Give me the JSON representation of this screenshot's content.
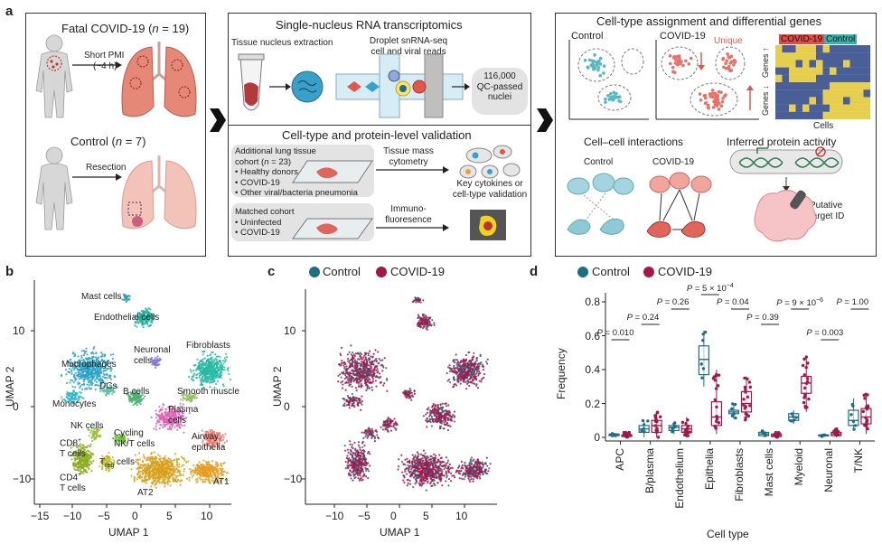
{
  "panels": {
    "a": "a",
    "b": "b",
    "c": "c",
    "d": "d"
  },
  "a": {
    "fatal_prefix": "Fatal COVID-19 (",
    "fatal_n": "n",
    "fatal_suffix": " = 19)",
    "short_pmi": "Short PMI",
    "pmi_value": "(~4 h)",
    "control_prefix": "Control (",
    "control_n": "n",
    "control_suffix": " = 7)",
    "resection": "Resection",
    "snrna_title": "Single-nucleus RNA transcriptomics",
    "extraction": "Tissue nucleus extraction",
    "droplet_1": "Droplet snRNA-seq",
    "droplet_2": "cell and viral reads",
    "qc_1": "116,000",
    "qc_2": "QC-passed",
    "qc_3": "nuclei",
    "validation_title": "Cell-type and protein-level validation",
    "additional_1": "Additional lung tissue",
    "additional_2_pre": "cohort (",
    "additional_2_n": "n",
    "additional_2_post": " = 23)",
    "bullet_healthy": "• Healthy donors",
    "bullet_covid": "• COVID-19",
    "bullet_other": "• Other viral/bacteria pneumonia",
    "matched": "Matched cohort",
    "bullet_uninfected": "• Uninfected",
    "bullet_covid2": "• COVID-19",
    "mass_1": "Tissue mass",
    "mass_2": "cytometry",
    "immuno_1": "Immuno-",
    "immuno_2": "fluoresence",
    "key_1": "Key cytokines or",
    "key_2": "cell-type validation",
    "assign_title": "Cell-type assignment and differential genes",
    "control": "Control",
    "covid": "COVID-19",
    "unique": "Unique",
    "hm_covid": "COVID-19",
    "hm_control": "Control",
    "genes_up": "Genes ↑",
    "genes_down": "Genes ↓",
    "cells": "Cells",
    "interactions": "Cell–cell interactions",
    "int_control": "Control",
    "int_covid": "COVID-19",
    "inferred": "Inferred protein activity",
    "putative_1": "Putative",
    "putative_2": "target ID"
  },
  "b": {
    "xlabel": "UMAP 1",
    "ylabel": "UMAP 2",
    "xticks": [
      "−15",
      "−10",
      "−5",
      "0",
      "5",
      "10"
    ],
    "yticks": [
      "10",
      "0",
      "−10"
    ],
    "labels": {
      "mast": "Mast cells",
      "endothelial": "Endothelial cells",
      "neuronal_1": "Neuronal",
      "neuronal_2": "cells",
      "fibroblasts": "Fibroblasts",
      "macrophages": "Macrophages",
      "dcs": "DCs",
      "bcells": "B cells",
      "smooth": "Smooth muscle",
      "monocytes": "Monocytes",
      "plasma_1": "Plasma",
      "plasma_2": "cells",
      "nk": "NK cells",
      "cycling_1": "Cycling",
      "cycling_2": "NK/T cells",
      "cd8_1": "CD8",
      "cd8_sup": "+",
      "cd8_2": "T cells",
      "treg_1": "T",
      "treg_sub": "reg",
      "treg_2": "cells",
      "airway_1": "Airway",
      "airway_2": "epithelia",
      "cd4_1": "CD4",
      "cd4_sup": "+",
      "cd4_2": "T cells",
      "at1": "AT1",
      "at2": "AT2"
    }
  },
  "c": {
    "legend_control": "Control",
    "legend_covid": "COVID-19",
    "xlabel": "UMAP 1",
    "ylabel": "UMAP 2",
    "xticks": [
      "−10",
      "−5",
      "0",
      "5",
      "10"
    ],
    "yticks": [
      "10",
      "0",
      "−10"
    ]
  },
  "colors": {
    "control": "#1f6e87",
    "covid": "#a3174a"
  },
  "chart_data": {
    "type": "box",
    "legend": [
      "Control",
      "COVID-19"
    ],
    "xlabel": "Cell type",
    "ylabel": "Frequency",
    "ylim": [
      0,
      0.85
    ],
    "yticks": [
      "0",
      "0.2",
      "0.4",
      "0.6",
      "0.8"
    ],
    "categories": [
      "APC",
      "B/plasma",
      "Endothelium",
      "Epithelia",
      "Fibroblasts",
      "Mast cells",
      "Myeloid",
      "Neuronal",
      "T/NK"
    ],
    "pvalues": [
      {
        "p": "P",
        "text": " = 0.010",
        "sup": ""
      },
      {
        "p": "P",
        "text": " = 0.24",
        "sup": ""
      },
      {
        "p": "P",
        "text": " = 0.26",
        "sup": ""
      },
      {
        "p": "P",
        "text": " = 5 × 10",
        "sup": "−4"
      },
      {
        "p": "P",
        "text": " = 0.04",
        "sup": ""
      },
      {
        "p": "P",
        "text": " = 0.39",
        "sup": ""
      },
      {
        "p": "P",
        "text": " = 9 × 10",
        "sup": "−6"
      },
      {
        "p": "P",
        "text": " = 0.003",
        "sup": ""
      },
      {
        "p": "P",
        "text": " = 1.00",
        "sup": ""
      }
    ],
    "series": [
      {
        "name": "Control",
        "boxes": [
          [
            0.005,
            0.01,
            0.015,
            0.02,
            0.025
          ],
          [
            0.0,
            0.03,
            0.05,
            0.07,
            0.1
          ],
          [
            0.02,
            0.04,
            0.06,
            0.07,
            0.09
          ],
          [
            0.3,
            0.37,
            0.46,
            0.54,
            0.63
          ],
          [
            0.11,
            0.14,
            0.15,
            0.16,
            0.2
          ],
          [
            0.0,
            0.01,
            0.02,
            0.03,
            0.04
          ],
          [
            0.08,
            0.1,
            0.12,
            0.14,
            0.16
          ],
          [
            0.005,
            0.008,
            0.01,
            0.015,
            0.02
          ],
          [
            0.04,
            0.07,
            0.1,
            0.16,
            0.23
          ]
        ]
      },
      {
        "name": "COVID-19",
        "boxes": [
          [
            0.0,
            0.005,
            0.01,
            0.015,
            0.03
          ],
          [
            0.0,
            0.03,
            0.07,
            0.1,
            0.15
          ],
          [
            0.0,
            0.03,
            0.05,
            0.07,
            0.12
          ],
          [
            0.02,
            0.07,
            0.12,
            0.21,
            0.4
          ],
          [
            0.1,
            0.15,
            0.2,
            0.27,
            0.36
          ],
          [
            0.0,
            0.005,
            0.01,
            0.02,
            0.03
          ],
          [
            0.15,
            0.26,
            0.32,
            0.36,
            0.48
          ],
          [
            0.0,
            0.01,
            0.02,
            0.03,
            0.05
          ],
          [
            0.02,
            0.08,
            0.12,
            0.17,
            0.26
          ]
        ]
      }
    ]
  }
}
